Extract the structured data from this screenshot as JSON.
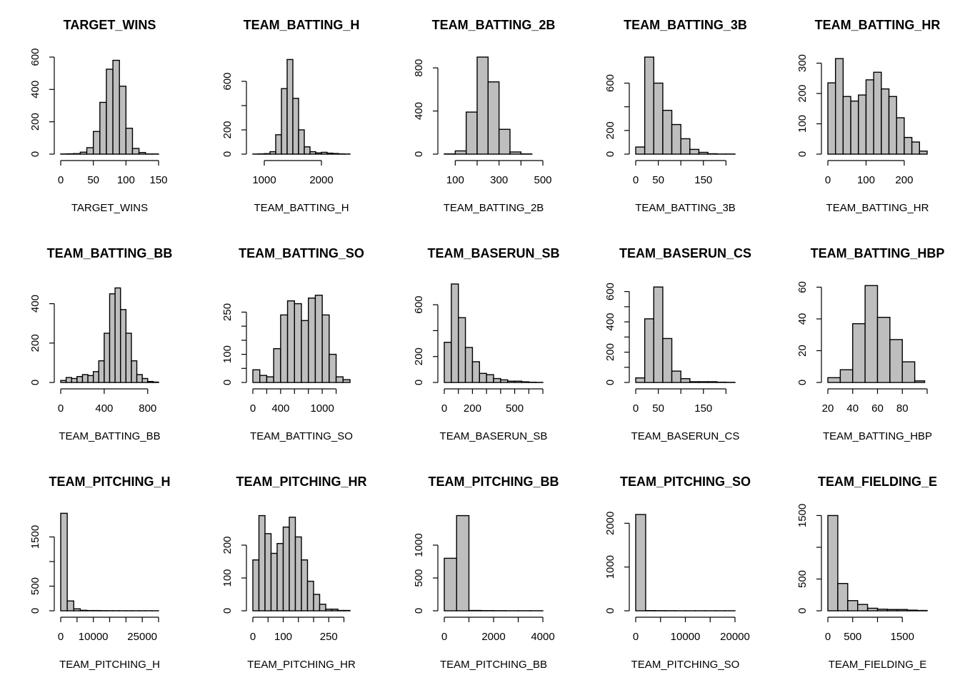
{
  "style": {
    "bar_fill": "#bebebe",
    "stroke": "#000000",
    "background": "#ffffff"
  },
  "chart_data": [
    {
      "type": "bar",
      "title": "TARGET_WINS",
      "xlabel": "TARGET_WINS",
      "ylabel": "",
      "bin_edges": [
        0,
        10,
        20,
        30,
        40,
        50,
        60,
        70,
        80,
        90,
        100,
        110,
        120,
        130,
        140,
        150
      ],
      "values": [
        1,
        2,
        3,
        12,
        40,
        140,
        320,
        525,
        580,
        420,
        160,
        35,
        10,
        1,
        1
      ],
      "xlim": [
        0,
        150
      ],
      "ylim": [
        0,
        600
      ],
      "x_ticks": [
        0,
        50,
        100,
        150
      ],
      "x_ticklabels": [
        "0",
        "50",
        "100",
        "150"
      ],
      "y_ticks": [
        0,
        200,
        400,
        600
      ],
      "y_ticklabels": [
        "0",
        "200",
        "400",
        "600"
      ]
    },
    {
      "type": "bar",
      "title": "TEAM_BATTING_H",
      "xlabel": "TEAM_BATTING_H",
      "ylabel": "",
      "bin_edges": [
        800,
        900,
        1000,
        1100,
        1200,
        1300,
        1400,
        1500,
        1600,
        1700,
        1800,
        1900,
        2000,
        2100,
        2200,
        2300,
        2400,
        2500
      ],
      "values": [
        1,
        2,
        4,
        20,
        160,
        540,
        780,
        460,
        200,
        60,
        20,
        10,
        15,
        8,
        5,
        2,
        1
      ],
      "xlim": [
        800,
        2500
      ],
      "ylim": [
        0,
        800
      ],
      "x_ticks": [
        1000,
        2000
      ],
      "x_ticklabels": [
        "1000",
        "2000"
      ],
      "y_ticks": [
        0,
        200,
        400,
        600
      ],
      "y_ticklabels": [
        "0",
        "200",
        "",
        "600"
      ]
    },
    {
      "type": "bar",
      "title": "TEAM_BATTING_2B",
      "xlabel": "TEAM_BATTING_2B",
      "ylabel": "",
      "bin_edges": [
        50,
        100,
        150,
        200,
        250,
        300,
        350,
        400,
        450,
        500
      ],
      "values": [
        2,
        30,
        390,
        900,
        670,
        230,
        20,
        2,
        0
      ],
      "xlim": [
        50,
        500
      ],
      "ylim": [
        0,
        900
      ],
      "x_ticks": [
        100,
        200,
        300,
        400,
        500
      ],
      "x_ticklabels": [
        "100",
        "",
        "300",
        "",
        "500"
      ],
      "y_ticks": [
        0,
        400,
        800
      ],
      "y_ticklabels": [
        "0",
        "400",
        "800"
      ]
    },
    {
      "type": "bar",
      "title": "TEAM_BATTING_3B",
      "xlabel": "TEAM_BATTING_3B",
      "ylabel": "",
      "bin_edges": [
        0,
        20,
        40,
        60,
        80,
        100,
        120,
        140,
        160,
        180,
        200,
        220
      ],
      "values": [
        60,
        820,
        600,
        370,
        250,
        130,
        40,
        15,
        3,
        1,
        1
      ],
      "xlim": [
        0,
        220
      ],
      "ylim": [
        0,
        820
      ],
      "x_ticks": [
        0,
        50,
        100,
        150,
        200
      ],
      "x_ticklabels": [
        "0",
        "50",
        "",
        "150",
        ""
      ],
      "y_ticks": [
        0,
        200,
        400,
        600
      ],
      "y_ticklabels": [
        "0",
        "200",
        "",
        "600"
      ]
    },
    {
      "type": "bar",
      "title": "TEAM_BATTING_HR",
      "xlabel": "TEAM_BATTING_HR",
      "ylabel": "",
      "bin_edges": [
        0,
        20,
        40,
        60,
        80,
        100,
        120,
        140,
        160,
        180,
        200,
        220,
        240,
        260
      ],
      "values": [
        235,
        315,
        190,
        175,
        195,
        245,
        270,
        215,
        190,
        120,
        55,
        40,
        10
      ],
      "xlim": [
        0,
        260
      ],
      "ylim": [
        0,
        320
      ],
      "x_ticks": [
        0,
        100,
        200
      ],
      "x_ticklabels": [
        "0",
        "100",
        "200"
      ],
      "y_ticks": [
        0,
        100,
        200,
        300
      ],
      "y_ticklabels": [
        "0",
        "100",
        "200",
        "300"
      ]
    },
    {
      "type": "bar",
      "title": "TEAM_BATTING_BB",
      "xlabel": "TEAM_BATTING_BB",
      "ylabel": "",
      "bin_edges": [
        0,
        50,
        100,
        150,
        200,
        250,
        300,
        350,
        400,
        450,
        500,
        550,
        600,
        650,
        700,
        750,
        800,
        850,
        900
      ],
      "values": [
        10,
        25,
        20,
        30,
        40,
        35,
        55,
        110,
        250,
        450,
        480,
        370,
        250,
        110,
        40,
        20,
        5,
        2
      ],
      "xlim": [
        0,
        900
      ],
      "ylim": [
        0,
        500
      ],
      "x_ticks": [
        0,
        400,
        800
      ],
      "x_ticklabels": [
        "0",
        "400",
        "800"
      ],
      "y_ticks": [
        0,
        200,
        400
      ],
      "y_ticklabels": [
        "0",
        "200",
        "400"
      ]
    },
    {
      "type": "bar",
      "title": "TEAM_BATTING_SO",
      "xlabel": "TEAM_BATTING_SO",
      "ylabel": "",
      "bin_edges": [
        0,
        100,
        200,
        300,
        400,
        500,
        600,
        700,
        800,
        900,
        1000,
        1100,
        1200,
        1300,
        1400
      ],
      "values": [
        45,
        25,
        20,
        120,
        240,
        290,
        280,
        220,
        300,
        310,
        240,
        100,
        20,
        10
      ],
      "xlim": [
        0,
        1400
      ],
      "ylim": [
        0,
        350
      ],
      "x_ticks": [
        0,
        200,
        400,
        600,
        800,
        1000,
        1200
      ],
      "x_ticklabels": [
        "0",
        "",
        "400",
        "",
        "",
        "1000",
        ""
      ],
      "y_ticks": [
        0,
        50,
        100,
        150,
        200,
        250
      ],
      "y_ticklabels": [
        "0",
        "",
        "100",
        "",
        "",
        "250"
      ]
    },
    {
      "type": "bar",
      "title": "TEAM_BASERUN_SB",
      "xlabel": "TEAM_BASERUN_SB",
      "ylabel": "",
      "bin_edges": [
        0,
        50,
        100,
        150,
        200,
        250,
        300,
        350,
        400,
        450,
        500,
        550,
        600,
        650,
        700
      ],
      "values": [
        310,
        760,
        500,
        270,
        160,
        70,
        60,
        30,
        20,
        10,
        10,
        5,
        2,
        1
      ],
      "xlim": [
        0,
        700
      ],
      "ylim": [
        0,
        760
      ],
      "x_ticks": [
        0,
        100,
        200,
        300,
        400,
        500,
        600,
        700
      ],
      "x_ticklabels": [
        "0",
        "",
        "200",
        "",
        "",
        "500",
        "",
        ""
      ],
      "y_ticks": [
        0,
        200,
        400,
        600
      ],
      "y_ticklabels": [
        "0",
        "200",
        "",
        "600"
      ]
    },
    {
      "type": "bar",
      "title": "TEAM_BASERUN_CS",
      "xlabel": "TEAM_BASERUN_CS",
      "ylabel": "",
      "bin_edges": [
        0,
        20,
        40,
        60,
        80,
        100,
        120,
        140,
        160,
        180,
        200,
        220
      ],
      "values": [
        30,
        420,
        630,
        290,
        75,
        25,
        5,
        5,
        5,
        2,
        1
      ],
      "xlim": [
        0,
        220
      ],
      "ylim": [
        0,
        650
      ],
      "x_ticks": [
        0,
        50,
        100,
        150,
        200
      ],
      "x_ticklabels": [
        "0",
        "50",
        "",
        "150",
        ""
      ],
      "y_ticks": [
        0,
        100,
        200,
        300,
        400,
        500,
        600
      ],
      "y_ticklabels": [
        "0",
        "",
        "200",
        "",
        "400",
        "",
        "600"
      ]
    },
    {
      "type": "bar",
      "title": "TEAM_BATTING_HBP",
      "xlabel": "TEAM_BATTING_HBP",
      "ylabel": "",
      "bin_edges": [
        20,
        30,
        40,
        50,
        60,
        70,
        80,
        90
      ],
      "values": [
        3,
        8,
        37,
        61,
        41,
        27,
        13
      ],
      "extra_bins": [
        {
          "x0": 90,
          "x1": 98,
          "v": 1
        }
      ],
      "xlim": [
        20,
        100
      ],
      "ylim": [
        0,
        62
      ],
      "x_ticks": [
        20,
        40,
        60,
        80,
        100
      ],
      "x_ticklabels": [
        "20",
        "40",
        "60",
        "80",
        ""
      ],
      "y_ticks": [
        0,
        20,
        40,
        60
      ],
      "y_ticklabels": [
        "0",
        "20",
        "40",
        "60"
      ]
    },
    {
      "type": "bar",
      "title": "TEAM_PITCHING_H",
      "xlabel": "TEAM_PITCHING_H",
      "ylabel": "",
      "bin_edges": [
        0,
        2000,
        4000,
        6000,
        8000,
        10000,
        12000,
        14000,
        16000,
        18000,
        20000,
        22000,
        24000,
        26000,
        28000,
        30000
      ],
      "values": [
        1980,
        200,
        40,
        10,
        5,
        5,
        3,
        2,
        2,
        1,
        1,
        1,
        1,
        1,
        1
      ],
      "xlim": [
        0,
        30000
      ],
      "ylim": [
        0,
        2000
      ],
      "x_ticks": [
        0,
        5000,
        10000,
        15000,
        20000,
        25000,
        30000
      ],
      "x_ticklabels": [
        "0",
        "",
        "10000",
        "",
        "",
        "25000",
        ""
      ],
      "y_ticks": [
        0,
        500,
        1000,
        1500
      ],
      "y_ticklabels": [
        "0",
        "500",
        "",
        "1500"
      ]
    },
    {
      "type": "bar",
      "title": "TEAM_PITCHING_HR",
      "xlabel": "TEAM_PITCHING_HR",
      "ylabel": "",
      "bin_edges": [
        0,
        20,
        40,
        60,
        80,
        100,
        120,
        140,
        160,
        180,
        200,
        220,
        240,
        260,
        280,
        300,
        320
      ],
      "values": [
        155,
        290,
        235,
        175,
        205,
        255,
        285,
        225,
        155,
        90,
        50,
        20,
        5,
        5,
        1,
        1
      ],
      "xlim": [
        0,
        320
      ],
      "ylim": [
        0,
        300
      ],
      "x_ticks": [
        0,
        50,
        100,
        150,
        200,
        250,
        300
      ],
      "x_ticklabels": [
        "0",
        "",
        "100",
        "",
        "",
        "250",
        ""
      ],
      "y_ticks": [
        0,
        100,
        200
      ],
      "y_ticklabels": [
        "0",
        "100",
        "200"
      ]
    },
    {
      "type": "bar",
      "title": "TEAM_PITCHING_BB",
      "xlabel": "TEAM_PITCHING_BB",
      "ylabel": "",
      "bin_edges": [
        0,
        500,
        1000,
        1500,
        2000,
        2500,
        3000,
        3500,
        4000
      ],
      "values": [
        800,
        1450,
        5,
        3,
        2,
        1,
        1,
        1
      ],
      "xlim": [
        0,
        4000
      ],
      "ylim": [
        0,
        1500
      ],
      "x_ticks": [
        0,
        1000,
        2000,
        3000,
        4000
      ],
      "x_ticklabels": [
        "0",
        "",
        "2000",
        "",
        "4000"
      ],
      "y_ticks": [
        0,
        500,
        1000
      ],
      "y_ticklabels": [
        "0",
        "500",
        "1000"
      ]
    },
    {
      "type": "bar",
      "title": "TEAM_PITCHING_SO",
      "xlabel": "TEAM_PITCHING_SO",
      "ylabel": "",
      "bin_edges": [
        0,
        2000,
        4000,
        6000,
        8000,
        10000,
        12000,
        14000,
        16000,
        18000,
        20000
      ],
      "values": [
        2200,
        5,
        3,
        2,
        1,
        1,
        1,
        1,
        1,
        1
      ],
      "xlim": [
        0,
        20000
      ],
      "ylim": [
        0,
        2250
      ],
      "x_ticks": [
        0,
        5000,
        10000,
        15000,
        20000
      ],
      "x_ticklabels": [
        "0",
        "",
        "10000",
        "",
        "20000"
      ],
      "y_ticks": [
        0,
        1000,
        2000
      ],
      "y_ticklabels": [
        "0",
        "1000",
        "2000"
      ]
    },
    {
      "type": "bar",
      "title": "TEAM_FIELDING_E",
      "xlabel": "TEAM_FIELDING_E",
      "ylabel": "",
      "bin_edges": [
        0,
        200,
        400,
        600,
        800,
        1000,
        1200,
        1400,
        1600,
        1800,
        2000
      ],
      "values": [
        1500,
        430,
        160,
        100,
        40,
        25,
        20,
        20,
        10,
        5
      ],
      "xlim": [
        0,
        2000
      ],
      "ylim": [
        0,
        1550
      ],
      "x_ticks": [
        0,
        500,
        1000,
        1500
      ],
      "x_ticklabels": [
        "0",
        "500",
        "",
        "1500"
      ],
      "y_ticks": [
        0,
        500,
        1000,
        1500
      ],
      "y_ticklabels": [
        "0",
        "500",
        "",
        "1500"
      ]
    }
  ]
}
